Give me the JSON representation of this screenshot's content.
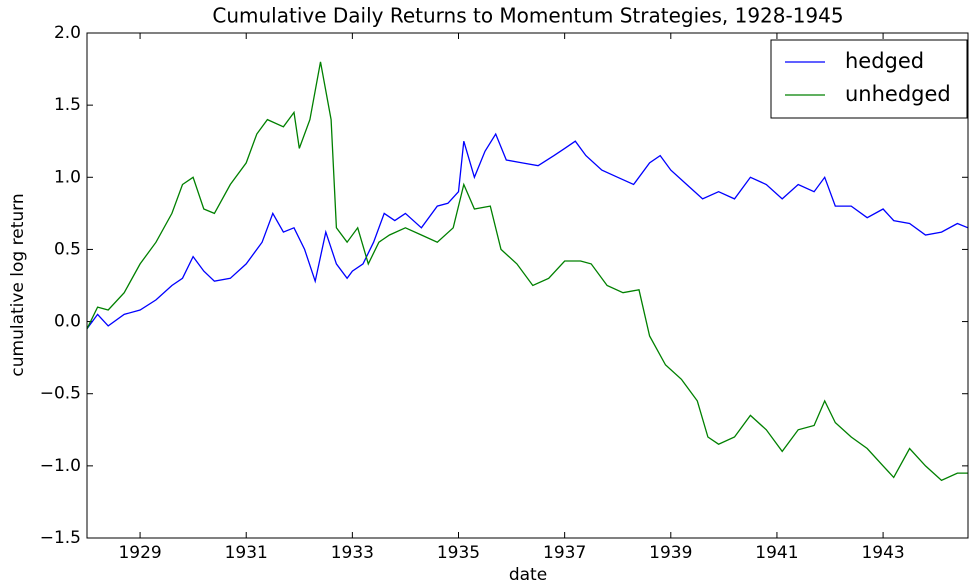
{
  "chart_data": {
    "type": "line",
    "title": "Cumulative Daily Returns to Momentum Strategies, 1928-1945",
    "x_label": "date",
    "y_label": "cumulative log return",
    "xlim": [
      1928.0,
      1944.6
    ],
    "xticks": [
      1929,
      1931,
      1933,
      1935,
      1937,
      1939,
      1941,
      1943
    ],
    "ylim": [
      -1.5,
      2.0
    ],
    "yticks": [
      {
        "value": -1.5,
        "label": "−1.5"
      },
      {
        "value": -1.0,
        "label": "−1.0"
      },
      {
        "value": -0.5,
        "label": "−0.5"
      },
      {
        "value": 0.0,
        "label": "0.0"
      },
      {
        "value": 0.5,
        "label": "0.5"
      },
      {
        "value": 1.0,
        "label": "1.0"
      },
      {
        "value": 1.5,
        "label": "1.5"
      },
      {
        "value": 2.0,
        "label": "2.0"
      }
    ],
    "legend": "upper-right",
    "series": [
      {
        "name": "hedged",
        "color": "#0000ff",
        "x": [
          1928.0,
          1928.2,
          1928.4,
          1928.7,
          1929.0,
          1929.3,
          1929.6,
          1929.8,
          1930.0,
          1930.2,
          1930.4,
          1930.7,
          1931.0,
          1931.3,
          1931.5,
          1931.7,
          1931.9,
          1932.1,
          1932.3,
          1932.5,
          1932.7,
          1932.9,
          1933.0,
          1933.2,
          1933.4,
          1933.6,
          1933.8,
          1934.0,
          1934.3,
          1934.6,
          1934.8,
          1935.0,
          1935.1,
          1935.3,
          1935.5,
          1935.7,
          1935.9,
          1936.2,
          1936.5,
          1936.8,
          1937.0,
          1937.2,
          1937.4,
          1937.7,
          1938.0,
          1938.3,
          1938.6,
          1938.8,
          1939.0,
          1939.3,
          1939.6,
          1939.9,
          1940.2,
          1940.5,
          1940.8,
          1941.1,
          1941.4,
          1941.7,
          1941.9,
          1942.1,
          1942.4,
          1942.7,
          1943.0,
          1943.2,
          1943.5,
          1943.8,
          1944.1,
          1944.4,
          1944.6
        ],
        "values": [
          -0.05,
          0.05,
          -0.03,
          0.05,
          0.08,
          0.15,
          0.25,
          0.3,
          0.45,
          0.35,
          0.28,
          0.3,
          0.4,
          0.55,
          0.75,
          0.62,
          0.65,
          0.5,
          0.28,
          0.62,
          0.4,
          0.3,
          0.35,
          0.4,
          0.55,
          0.75,
          0.7,
          0.75,
          0.65,
          0.8,
          0.82,
          0.9,
          1.25,
          1.0,
          1.18,
          1.3,
          1.12,
          1.1,
          1.08,
          1.15,
          1.2,
          1.25,
          1.15,
          1.05,
          1.0,
          0.95,
          1.1,
          1.15,
          1.05,
          0.95,
          0.85,
          0.9,
          0.85,
          1.0,
          0.95,
          0.85,
          0.95,
          0.9,
          1.0,
          0.8,
          0.8,
          0.72,
          0.78,
          0.7,
          0.68,
          0.6,
          0.62,
          0.68,
          0.65
        ]
      },
      {
        "name": "unhedged",
        "color": "#008000",
        "x": [
          1928.0,
          1928.2,
          1928.4,
          1928.7,
          1929.0,
          1929.3,
          1929.6,
          1929.8,
          1930.0,
          1930.2,
          1930.4,
          1930.7,
          1931.0,
          1931.2,
          1931.4,
          1931.7,
          1931.9,
          1932.0,
          1932.2,
          1932.4,
          1932.6,
          1932.7,
          1932.9,
          1933.1,
          1933.3,
          1933.5,
          1933.7,
          1934.0,
          1934.3,
          1934.6,
          1934.9,
          1935.1,
          1935.3,
          1935.6,
          1935.8,
          1936.1,
          1936.4,
          1936.7,
          1937.0,
          1937.3,
          1937.5,
          1937.8,
          1938.1,
          1938.4,
          1938.6,
          1938.9,
          1939.2,
          1939.5,
          1939.7,
          1939.9,
          1940.2,
          1940.5,
          1940.8,
          1941.1,
          1941.4,
          1941.7,
          1941.9,
          1942.1,
          1942.4,
          1942.7,
          1943.0,
          1943.2,
          1943.5,
          1943.8,
          1944.1,
          1944.4,
          1944.6
        ],
        "values": [
          -0.05,
          0.1,
          0.08,
          0.2,
          0.4,
          0.55,
          0.75,
          0.95,
          1.0,
          0.78,
          0.75,
          0.95,
          1.1,
          1.3,
          1.4,
          1.35,
          1.45,
          1.2,
          1.4,
          1.8,
          1.4,
          0.65,
          0.55,
          0.65,
          0.4,
          0.55,
          0.6,
          0.65,
          0.6,
          0.55,
          0.65,
          0.95,
          0.78,
          0.8,
          0.5,
          0.4,
          0.25,
          0.3,
          0.42,
          0.42,
          0.4,
          0.25,
          0.2,
          0.22,
          -0.1,
          -0.3,
          -0.4,
          -0.55,
          -0.8,
          -0.85,
          -0.8,
          -0.65,
          -0.75,
          -0.9,
          -0.75,
          -0.72,
          -0.55,
          -0.7,
          -0.8,
          -0.88,
          -1.0,
          -1.08,
          -0.88,
          -1.0,
          -1.1,
          -1.05,
          -1.05
        ]
      }
    ]
  }
}
